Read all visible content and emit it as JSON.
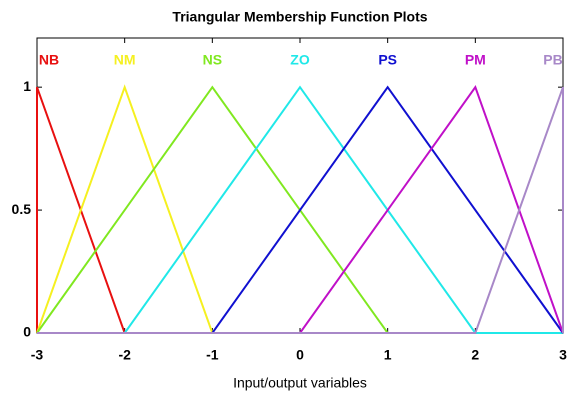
{
  "chart_data": {
    "type": "line",
    "title": "Triangular Membership Function Plots",
    "x_label": "Input/output variables",
    "xlim": [
      -3,
      3
    ],
    "xticks": [
      -3,
      -2,
      -1,
      0,
      1,
      2,
      3
    ],
    "ylim": [
      0,
      1.2
    ],
    "yticks": [
      0,
      0.5,
      1
    ],
    "series": [
      {
        "name": "NB",
        "color": "#e81010",
        "x": [
          -3,
          -3,
          -2,
          3
        ],
        "values": [
          0,
          1,
          0,
          0
        ]
      },
      {
        "name": "NM",
        "color": "#f5f020",
        "x": [
          -3,
          -2,
          -1,
          3
        ],
        "values": [
          0,
          1,
          0,
          0
        ]
      },
      {
        "name": "NS",
        "color": "#80e820",
        "x": [
          -3,
          -1,
          1,
          3
        ],
        "values": [
          0,
          1,
          0,
          0
        ]
      },
      {
        "name": "ZO",
        "color": "#20e8e8",
        "x": [
          -3,
          -2,
          0,
          2,
          3
        ],
        "values": [
          0,
          0,
          1,
          0,
          0
        ]
      },
      {
        "name": "PS",
        "color": "#1010d0",
        "x": [
          -3,
          -1,
          1,
          3
        ],
        "values": [
          0,
          0,
          1,
          0
        ]
      },
      {
        "name": "PM",
        "color": "#c010c8",
        "x": [
          -3,
          0,
          2,
          3
        ],
        "values": [
          0,
          0,
          1,
          0
        ]
      },
      {
        "name": "PB",
        "color": "#a888c8",
        "x": [
          -3,
          2,
          3,
          3
        ],
        "values": [
          0,
          0,
          1,
          0
        ]
      }
    ]
  }
}
